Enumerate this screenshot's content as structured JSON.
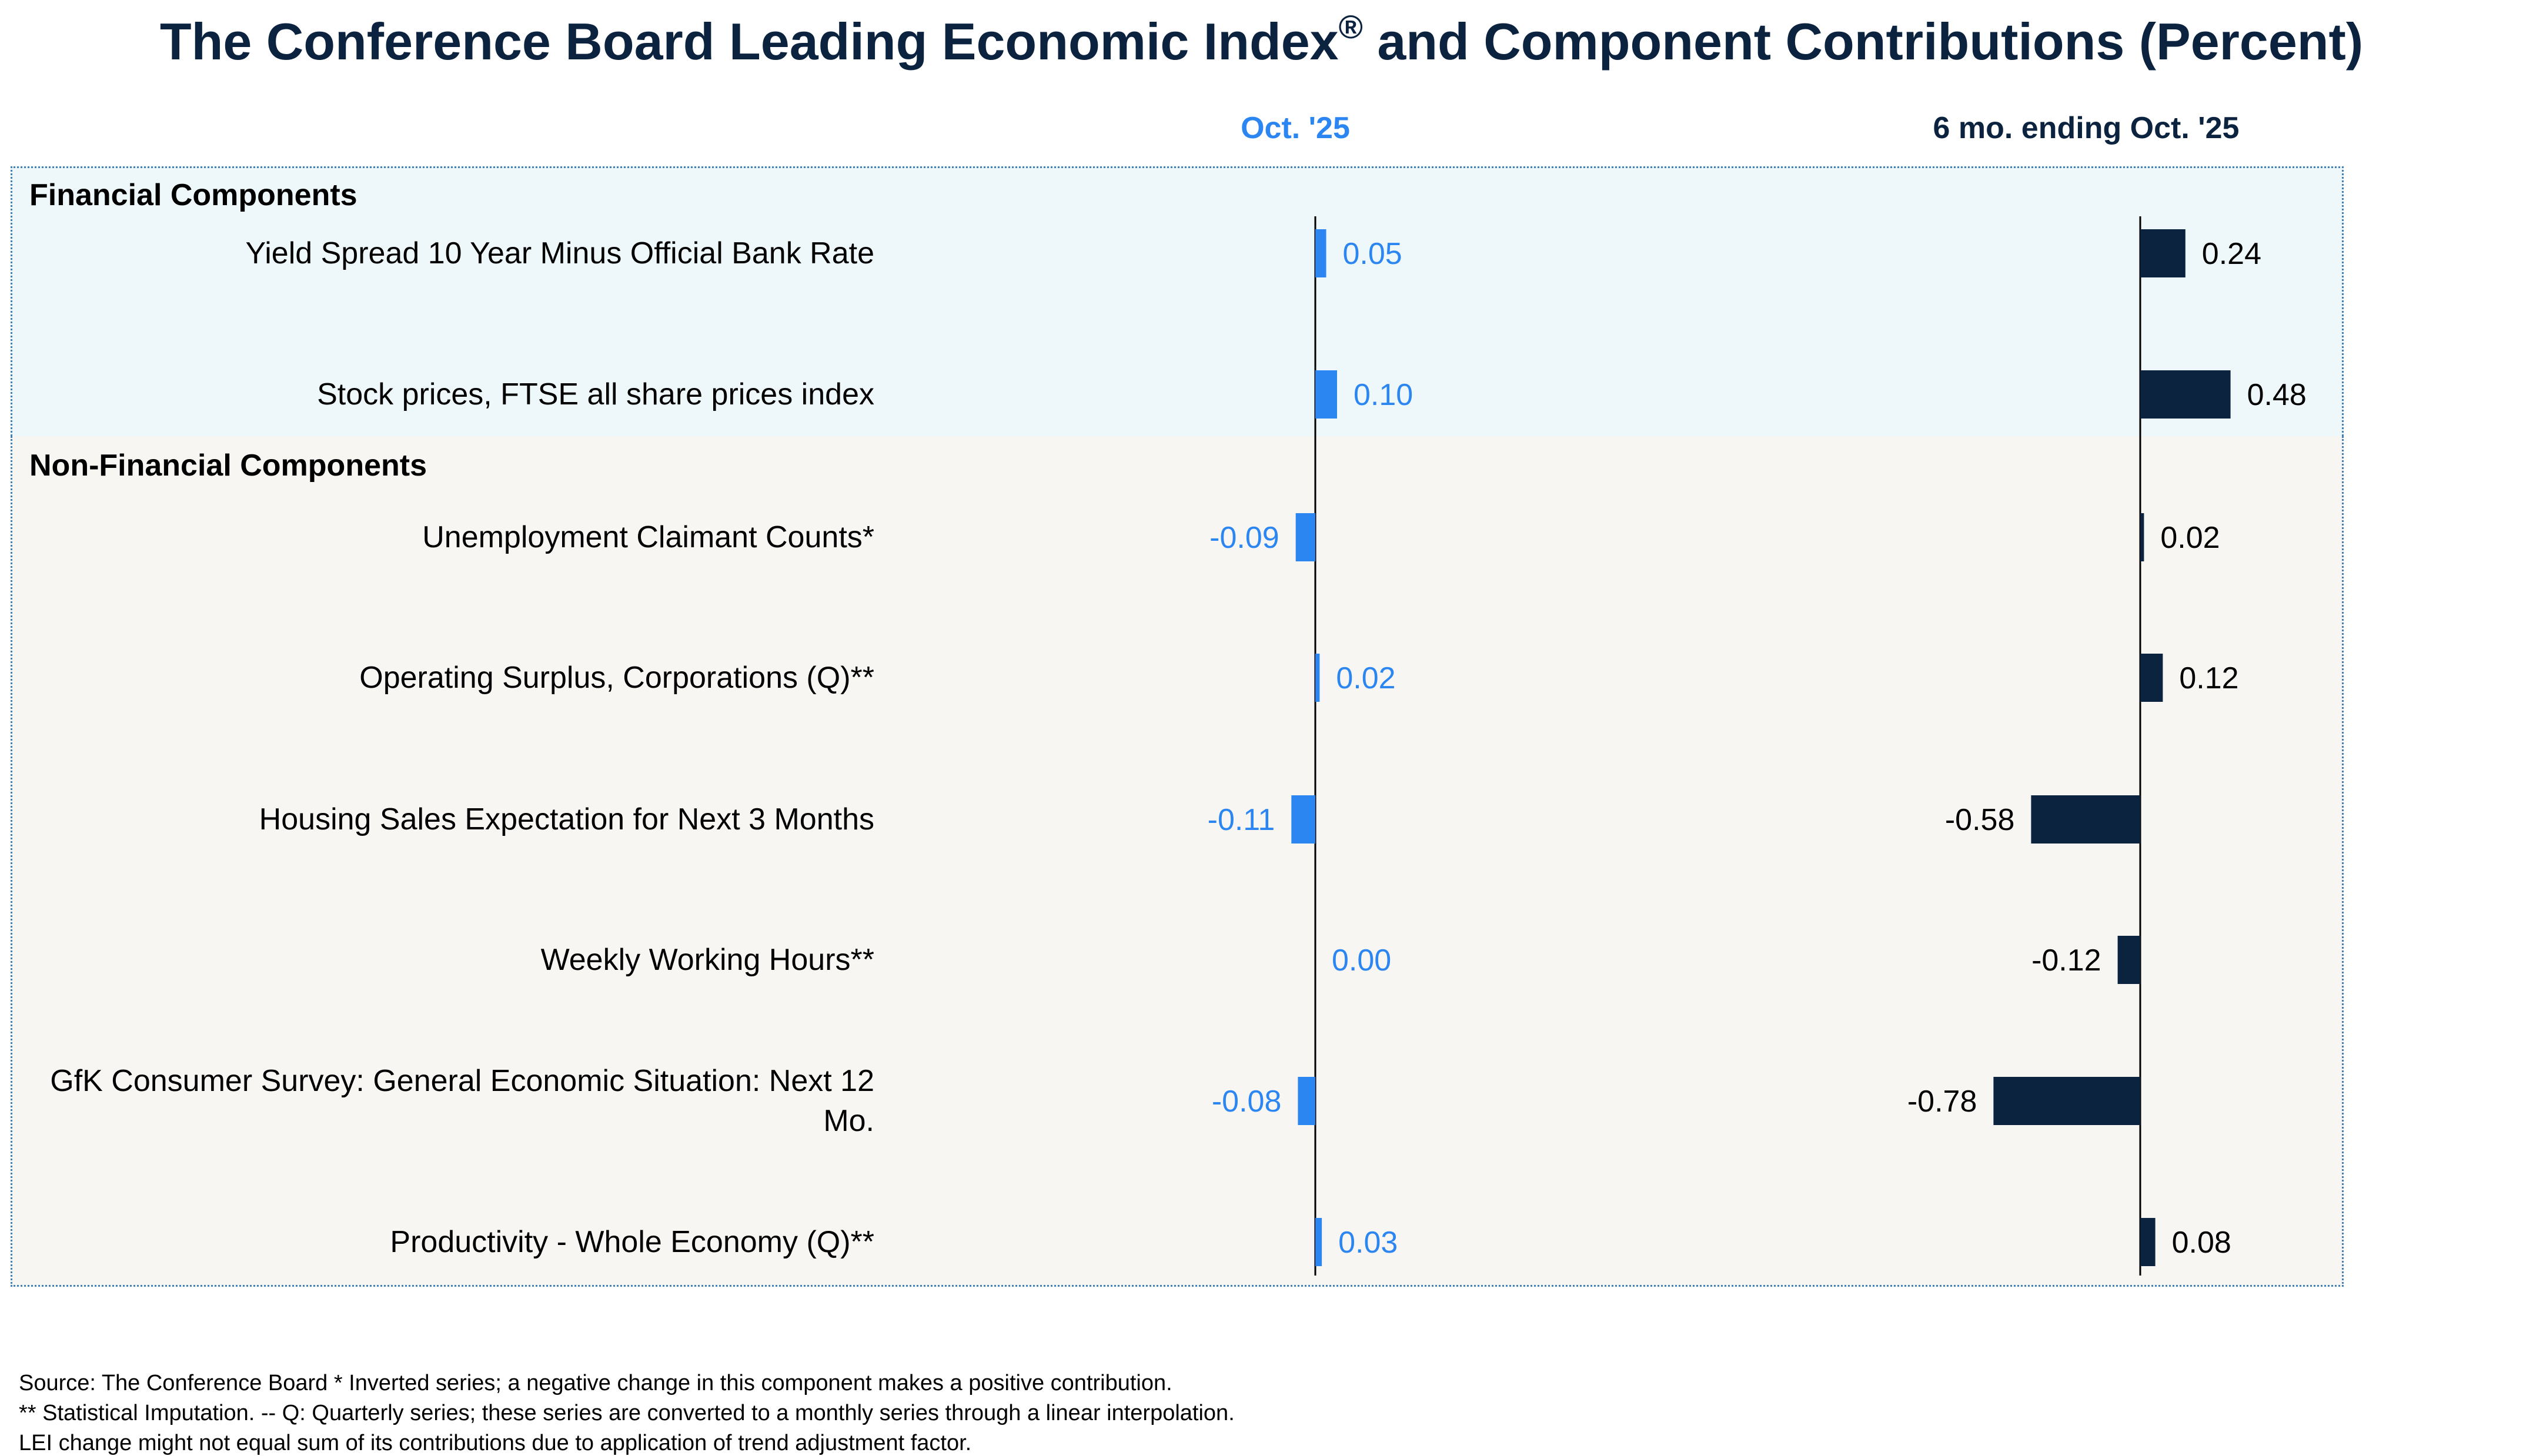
{
  "title": "The Conference Board Leading Economic Index",
  "title_mark": "®",
  "title_suffix": " and Component Contributions (Percent)",
  "colors": {
    "title": "#0c2340",
    "oct_series": "#2c86f2",
    "six_month_series": "#0c2340",
    "financial_panel": "#eef7f9",
    "nonfinancial_panel": "#f7f6f3",
    "panel_border": "#3f80b7"
  },
  "chart_data": {
    "type": "bar",
    "orientation": "horizontal",
    "groups": [
      {
        "label": "Financial Components",
        "categories": [
          0,
          1
        ]
      },
      {
        "label": "Non-Financial Components",
        "categories": [
          2,
          3,
          4,
          5,
          6,
          7
        ]
      }
    ],
    "categories": [
      "Yield Spread 10 Year Minus Official Bank Rate",
      "Stock prices, FTSE all share prices index",
      "Unemployment Claimant Counts*",
      "Operating Surplus, Corporations (Q)**",
      "Housing Sales Expectation for Next 3 Months",
      "Weekly Working Hours**",
      "GfK Consumer Survey: General Economic Situation: Next 12 Mo.",
      "Productivity - Whole Economy (Q)**"
    ],
    "series": [
      {
        "name": "Oct. '25",
        "values": [
          0.05,
          0.1,
          -0.09,
          0.02,
          -0.11,
          0.0,
          -0.08,
          0.03
        ],
        "labels": [
          "0.05",
          "0.10",
          "-0.09",
          "0.02",
          "-0.11",
          "0.00",
          "-0.08",
          "0.03"
        ]
      },
      {
        "name": "6 mo. ending Oct. '25",
        "values": [
          0.24,
          0.48,
          0.02,
          0.12,
          -0.58,
          -0.12,
          -0.78,
          0.08
        ],
        "labels": [
          "0.24",
          "0.48",
          "0.02",
          "0.12",
          "-0.58",
          "-0.12",
          "-0.78",
          "0.08"
        ]
      }
    ]
  },
  "footnotes": [
    "Source: The Conference Board *  Inverted series; a negative change in this component makes a positive contribution.",
    "**  Statistical Imputation. -- Q: Quarterly series; these series are converted to a monthly series through a linear interpolation.",
    "LEI change might not equal sum of its contributions due to application of trend adjustment factor."
  ]
}
